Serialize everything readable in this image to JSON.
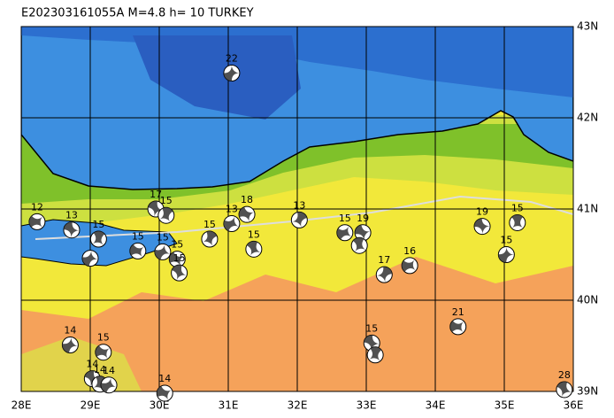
{
  "map": {
    "title": "E202303161055A M=4.8 h= 10 TURKEY",
    "lonlim": [
      28,
      36
    ],
    "latlim": [
      39,
      43
    ],
    "lonticks": [
      {
        "value": 28,
        "label": "28E"
      },
      {
        "value": 29,
        "label": "29E"
      },
      {
        "value": 30,
        "label": "30E"
      },
      {
        "value": 31,
        "label": "31E"
      },
      {
        "value": 32,
        "label": "32E"
      },
      {
        "value": 33,
        "label": "33E"
      },
      {
        "value": 34,
        "label": "34E"
      },
      {
        "value": 35,
        "label": "35E"
      },
      {
        "value": 36,
        "label": "36E"
      }
    ],
    "latticks": [
      {
        "value": 39,
        "label": "39N"
      },
      {
        "value": 40,
        "label": "40N"
      },
      {
        "value": 41,
        "label": "41N"
      },
      {
        "value": 42,
        "label": "42N"
      },
      {
        "value": 43,
        "label": "43N"
      }
    ],
    "events": [
      {
        "lon": 31.05,
        "lat": 42.49,
        "depth": 22
      },
      {
        "lon": 28.23,
        "lat": 40.86,
        "depth": 12
      },
      {
        "lon": 28.73,
        "lat": 40.77,
        "depth": 13
      },
      {
        "lon": 29.12,
        "lat": 40.67,
        "depth": 15
      },
      {
        "lon": 29.0,
        "lat": 40.46,
        "depth": null
      },
      {
        "lon": 29.69,
        "lat": 40.54,
        "depth": 15
      },
      {
        "lon": 29.95,
        "lat": 41.0,
        "depth": 17
      },
      {
        "lon": 30.1,
        "lat": 40.93,
        "depth": 15
      },
      {
        "lon": 30.05,
        "lat": 40.53,
        "depth": 15
      },
      {
        "lon": 30.26,
        "lat": 40.45,
        "depth": 15
      },
      {
        "lon": 30.29,
        "lat": 40.3,
        "depth": 15
      },
      {
        "lon": 30.73,
        "lat": 40.67,
        "depth": 15
      },
      {
        "lon": 31.05,
        "lat": 40.84,
        "depth": 13
      },
      {
        "lon": 31.27,
        "lat": 40.94,
        "depth": 18
      },
      {
        "lon": 31.37,
        "lat": 40.56,
        "depth": 15
      },
      {
        "lon": 32.03,
        "lat": 40.88,
        "depth": 13
      },
      {
        "lon": 32.69,
        "lat": 40.74,
        "depth": 15
      },
      {
        "lon": 32.95,
        "lat": 40.74,
        "depth": 19
      },
      {
        "lon": 32.9,
        "lat": 40.6,
        "depth": null
      },
      {
        "lon": 33.26,
        "lat": 40.28,
        "depth": 17
      },
      {
        "lon": 33.63,
        "lat": 40.38,
        "depth": 16
      },
      {
        "lon": 34.68,
        "lat": 40.81,
        "depth": 19
      },
      {
        "lon": 35.19,
        "lat": 40.85,
        "depth": 15
      },
      {
        "lon": 35.03,
        "lat": 40.5,
        "depth": 15
      },
      {
        "lon": 34.33,
        "lat": 39.71,
        "depth": 21
      },
      {
        "lon": 33.08,
        "lat": 39.53,
        "depth": 15
      },
      {
        "lon": 33.13,
        "lat": 39.4,
        "depth": null
      },
      {
        "lon": 28.71,
        "lat": 39.51,
        "depth": 14
      },
      {
        "lon": 29.19,
        "lat": 39.43,
        "depth": 15
      },
      {
        "lon": 29.03,
        "lat": 39.14,
        "depth": 14
      },
      {
        "lon": 29.14,
        "lat": 39.08,
        "depth": 14
      },
      {
        "lon": 29.27,
        "lat": 39.07,
        "depth": 14
      },
      {
        "lon": 30.08,
        "lat": 38.98,
        "depth": 14
      },
      {
        "lon": 35.87,
        "lat": 39.02,
        "depth": 28
      }
    ]
  }
}
